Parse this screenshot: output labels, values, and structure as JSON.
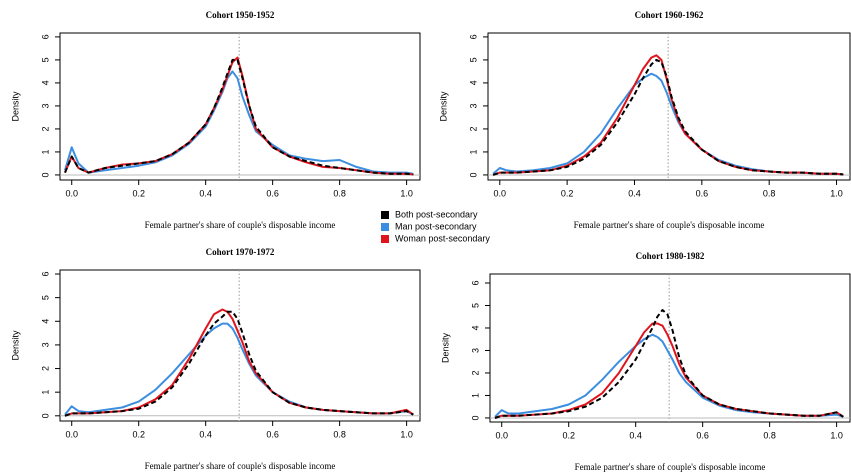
{
  "chart_data": [
    {
      "type": "line",
      "title": "Cohort 1950-1952",
      "xlabel": "Female partner's share of couple's disposable income",
      "ylabel": "Density",
      "x": [
        -0.02,
        0,
        0.02,
        0.05,
        0.1,
        0.15,
        0.2,
        0.25,
        0.3,
        0.35,
        0.4,
        0.425,
        0.45,
        0.465,
        0.48,
        0.495,
        0.51,
        0.53,
        0.55,
        0.6,
        0.65,
        0.7,
        0.75,
        0.8,
        0.85,
        0.9,
        0.95,
        1.0,
        1.02
      ],
      "series": [
        {
          "name": "Both post-secondary",
          "color": "#000000",
          "linestyle": "dashed",
          "values": [
            0.1,
            0.8,
            0.3,
            0.1,
            0.3,
            0.4,
            0.5,
            0.6,
            0.9,
            1.4,
            2.2,
            2.9,
            3.8,
            4.4,
            5.0,
            5.0,
            4.2,
            3.0,
            2.1,
            1.2,
            0.8,
            0.6,
            0.4,
            0.3,
            0.2,
            0.1,
            0.05,
            0.05,
            0.02
          ]
        },
        {
          "name": "Man post-secondary",
          "color": "#3c8fe0",
          "values": [
            0.2,
            1.2,
            0.5,
            0.1,
            0.2,
            0.3,
            0.4,
            0.55,
            0.85,
            1.35,
            2.1,
            2.8,
            3.6,
            4.2,
            4.5,
            4.2,
            3.4,
            2.6,
            1.9,
            1.3,
            0.85,
            0.7,
            0.6,
            0.65,
            0.35,
            0.15,
            0.1,
            0.1,
            0.05
          ]
        },
        {
          "name": "Woman post-secondary",
          "color": "#e0141c",
          "values": [
            0.1,
            0.8,
            0.3,
            0.1,
            0.3,
            0.45,
            0.5,
            0.6,
            0.9,
            1.4,
            2.2,
            2.9,
            3.7,
            4.3,
            4.9,
            5.1,
            4.3,
            3.0,
            2.0,
            1.2,
            0.8,
            0.55,
            0.35,
            0.3,
            0.2,
            0.1,
            0.05,
            0.05,
            0.02
          ]
        }
      ],
      "xlim": [
        -0.035,
        1.04
      ],
      "ylim": [
        -0.22,
        6.17
      ],
      "xticks": [
        {
          "value": 0,
          "label": "0.0"
        },
        0.2,
        0.4,
        0.6,
        0.8,
        {
          "value": 1,
          "label": "1.0"
        }
      ],
      "yticks": [
        0,
        1,
        2,
        3,
        4,
        5,
        6
      ],
      "vline": 0.5,
      "hline": 0
    },
    {
      "type": "line",
      "title": "Cohort 1960-1962",
      "xlabel": "Female partner's share of couple's disposable income",
      "ylabel": "Density",
      "x": [
        -0.02,
        0,
        0.02,
        0.05,
        0.1,
        0.15,
        0.2,
        0.25,
        0.3,
        0.35,
        0.4,
        0.425,
        0.45,
        0.465,
        0.48,
        0.495,
        0.51,
        0.53,
        0.55,
        0.6,
        0.65,
        0.7,
        0.75,
        0.8,
        0.85,
        0.9,
        0.95,
        1.0,
        1.02
      ],
      "series": [
        {
          "color": "#000000",
          "linestyle": "dashed",
          "values": [
            0,
            0.1,
            0.1,
            0.1,
            0.15,
            0.2,
            0.35,
            0.7,
            1.3,
            2.3,
            3.5,
            4.2,
            4.8,
            5.0,
            4.9,
            4.3,
            3.4,
            2.5,
            1.9,
            1.1,
            0.6,
            0.35,
            0.2,
            0.15,
            0.1,
            0.1,
            0.05,
            0.05,
            0.02
          ]
        },
        {
          "color": "#3c8fe0",
          "values": [
            0.05,
            0.3,
            0.2,
            0.15,
            0.2,
            0.3,
            0.5,
            1.0,
            1.8,
            2.9,
            3.9,
            4.2,
            4.4,
            4.3,
            4.1,
            3.6,
            3.0,
            2.3,
            1.8,
            1.1,
            0.65,
            0.4,
            0.25,
            0.15,
            0.1,
            0.1,
            0.05,
            0.05,
            0.02
          ]
        },
        {
          "color": "#e0141c",
          "values": [
            0,
            0.1,
            0.1,
            0.1,
            0.15,
            0.2,
            0.4,
            0.8,
            1.4,
            2.5,
            3.9,
            4.6,
            5.1,
            5.2,
            5.0,
            4.2,
            3.3,
            2.4,
            1.8,
            1.1,
            0.6,
            0.35,
            0.2,
            0.15,
            0.1,
            0.1,
            0.05,
            0.05,
            0.02
          ]
        }
      ],
      "xlim": [
        -0.035,
        1.04
      ],
      "ylim": [
        -0.22,
        6.17
      ],
      "xticks": [
        {
          "value": 0,
          "label": "0.0"
        },
        0.2,
        0.4,
        0.6,
        0.8,
        {
          "value": 1,
          "label": "1.0"
        }
      ],
      "yticks": [
        0,
        1,
        2,
        3,
        4,
        5,
        6
      ],
      "vline": 0.5,
      "hline": 0
    },
    {
      "type": "line",
      "title": "Cohort 1970-1972",
      "xlabel": "Female partner's share of couple's disposable income",
      "ylabel": "Density",
      "x": [
        -0.02,
        0,
        0.02,
        0.05,
        0.1,
        0.15,
        0.2,
        0.25,
        0.3,
        0.35,
        0.4,
        0.425,
        0.45,
        0.465,
        0.48,
        0.495,
        0.51,
        0.53,
        0.55,
        0.6,
        0.65,
        0.7,
        0.75,
        0.8,
        0.85,
        0.9,
        0.95,
        1.0,
        1.02
      ],
      "series": [
        {
          "color": "#000000",
          "linestyle": "dashed",
          "values": [
            0,
            0.1,
            0.1,
            0.1,
            0.15,
            0.2,
            0.3,
            0.6,
            1.2,
            2.2,
            3.4,
            3.9,
            4.2,
            4.4,
            4.4,
            4.1,
            3.5,
            2.6,
            1.9,
            1.0,
            0.55,
            0.35,
            0.25,
            0.2,
            0.15,
            0.1,
            0.1,
            0.2,
            0.05
          ]
        },
        {
          "color": "#3c8fe0",
          "values": [
            0.05,
            0.4,
            0.2,
            0.15,
            0.25,
            0.35,
            0.6,
            1.1,
            1.8,
            2.6,
            3.4,
            3.7,
            3.9,
            3.9,
            3.7,
            3.3,
            2.8,
            2.2,
            1.7,
            1.0,
            0.6,
            0.35,
            0.25,
            0.2,
            0.15,
            0.1,
            0.1,
            0.2,
            0.05
          ]
        },
        {
          "color": "#e0141c",
          "values": [
            0,
            0.1,
            0.1,
            0.1,
            0.15,
            0.2,
            0.35,
            0.7,
            1.3,
            2.4,
            3.7,
            4.3,
            4.5,
            4.4,
            4.1,
            3.6,
            3.1,
            2.3,
            1.8,
            1.0,
            0.55,
            0.35,
            0.25,
            0.2,
            0.15,
            0.1,
            0.1,
            0.25,
            0.05
          ]
        }
      ],
      "xlim": [
        -0.035,
        1.04
      ],
      "ylim": [
        -0.22,
        6.17
      ],
      "xticks": [
        {
          "value": 0,
          "label": "0.0"
        },
        0.2,
        0.4,
        0.6,
        0.8,
        {
          "value": 1,
          "label": "1.0"
        }
      ],
      "yticks": [
        0,
        1,
        2,
        3,
        4,
        5,
        6
      ],
      "vline": 0.5,
      "hline": 0
    },
    {
      "type": "line",
      "title": "Cohort 1980-1982",
      "xlabel": "Female partner's share of couple's disposable income",
      "ylabel": "Density",
      "x": [
        -0.02,
        0,
        0.02,
        0.05,
        0.1,
        0.15,
        0.2,
        0.25,
        0.3,
        0.35,
        0.4,
        0.425,
        0.45,
        0.465,
        0.48,
        0.495,
        0.51,
        0.53,
        0.55,
        0.6,
        0.65,
        0.7,
        0.75,
        0.8,
        0.85,
        0.9,
        0.95,
        1.0,
        1.02
      ],
      "series": [
        {
          "color": "#000000",
          "linestyle": "dashed",
          "values": [
            0,
            0.1,
            0.1,
            0.1,
            0.15,
            0.2,
            0.3,
            0.5,
            0.9,
            1.6,
            2.6,
            3.3,
            4.0,
            4.5,
            4.8,
            4.6,
            3.9,
            2.7,
            1.9,
            1.0,
            0.6,
            0.4,
            0.3,
            0.2,
            0.15,
            0.1,
            0.1,
            0.25,
            0.05
          ]
        },
        {
          "color": "#3c8fe0",
          "values": [
            0.05,
            0.35,
            0.2,
            0.2,
            0.3,
            0.4,
            0.6,
            1.0,
            1.7,
            2.5,
            3.2,
            3.5,
            3.7,
            3.6,
            3.4,
            3.0,
            2.6,
            2.0,
            1.6,
            0.9,
            0.55,
            0.35,
            0.25,
            0.2,
            0.15,
            0.1,
            0.1,
            0.15,
            0.05
          ]
        },
        {
          "color": "#e0141c",
          "values": [
            0,
            0.1,
            0.1,
            0.1,
            0.15,
            0.2,
            0.35,
            0.6,
            1.1,
            2.0,
            3.2,
            3.8,
            4.2,
            4.2,
            4.1,
            3.7,
            3.2,
            2.4,
            1.8,
            1.0,
            0.6,
            0.4,
            0.3,
            0.2,
            0.15,
            0.1,
            0.1,
            0.25,
            0.05
          ]
        }
      ],
      "xlim": [
        -0.035,
        1.04
      ],
      "ylim": [
        -0.18,
        6.4
      ],
      "xticks": [
        {
          "value": 0,
          "label": "0.0"
        },
        0.2,
        0.4,
        0.6,
        0.8,
        {
          "value": 1,
          "label": "1.0"
        }
      ],
      "yticks": [
        0,
        1,
        2,
        3,
        4,
        5,
        6
      ],
      "vline": 0.5,
      "hline": 0
    }
  ]
}
